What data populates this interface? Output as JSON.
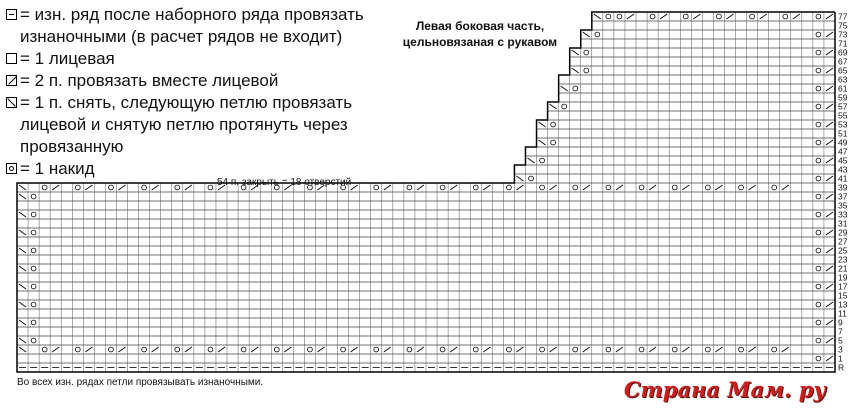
{
  "legend": [
    {
      "icon": "purl-dash-icon",
      "kind": "purl",
      "text": "= изн. ряд после наборного ряда провязать\nизнаночными (в расчет рядов не входит)"
    },
    {
      "icon": "empty-square-icon",
      "kind": "knit",
      "text": "= 1 лицевая"
    },
    {
      "icon": "k2tog-slash-icon",
      "kind": "k2tog",
      "text": "= 2 п. провязать вместе лицевой"
    },
    {
      "icon": "ssk-backslash-icon",
      "kind": "ssk",
      "text": "= 1 п. снять, следующую петлю провязать\nлицевой и снятую петлю протянуть через\nпровязанную"
    },
    {
      "icon": "yarn-over-circle-icon",
      "kind": "yo",
      "text": "= 1 накид"
    }
  ],
  "chart": {
    "title_line1": "Левая боковая часть,",
    "title_line2": "цельновязаная с рукавом",
    "bind_off_note": "54 п. закрыть = 18 отверстий",
    "row_labels": [
      "77",
      "75",
      "73",
      "71",
      "69",
      "67",
      "65",
      "63",
      "61",
      "59",
      "57",
      "55",
      "53",
      "51",
      "49",
      "47",
      "45",
      "43",
      "41",
      "39",
      "37",
      "35",
      "33",
      "31",
      "29",
      "27",
      "25",
      "23",
      "21",
      "19",
      "17",
      "15",
      "13",
      "11",
      "9",
      "7",
      "5",
      "3",
      "1",
      "R"
    ]
  },
  "footnote": "Во всех изн. рядах петли провязывать изнаночными.",
  "watermark": {
    "text": "Страна Мам",
    "suffix": ". ру"
  }
}
